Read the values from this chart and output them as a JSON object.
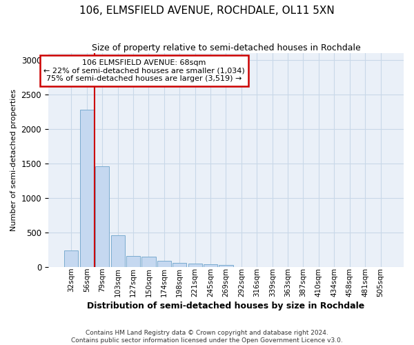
{
  "title": "106, ELMSFIELD AVENUE, ROCHDALE, OL11 5XN",
  "subtitle": "Size of property relative to semi-detached houses in Rochdale",
  "xlabel": "Distribution of semi-detached houses by size in Rochdale",
  "ylabel": "Number of semi-detached properties",
  "footer_line1": "Contains HM Land Registry data © Crown copyright and database right 2024.",
  "footer_line2": "Contains public sector information licensed under the Open Government Licence v3.0.",
  "annotation_title": "106 ELMSFIELD AVENUE: 68sqm",
  "annotation_line1": "← 22% of semi-detached houses are smaller (1,034)",
  "annotation_line2": "75% of semi-detached houses are larger (3,519) →",
  "bar_categories": [
    "32sqm",
    "56sqm",
    "79sqm",
    "103sqm",
    "127sqm",
    "150sqm",
    "174sqm",
    "198sqm",
    "221sqm",
    "245sqm",
    "269sqm",
    "292sqm",
    "316sqm",
    "339sqm",
    "363sqm",
    "387sqm",
    "410sqm",
    "434sqm",
    "458sqm",
    "481sqm",
    "505sqm"
  ],
  "bar_values": [
    240,
    2280,
    1460,
    460,
    160,
    145,
    85,
    55,
    50,
    40,
    30,
    0,
    0,
    0,
    0,
    0,
    0,
    0,
    0,
    0,
    0
  ],
  "bar_color": "#c5d8f0",
  "bar_edge_color": "#7aabcf",
  "red_line_x": 1.5,
  "ylim_max": 3100,
  "yticks": [
    0,
    500,
    1000,
    1500,
    2000,
    2500,
    3000
  ],
  "grid_color": "#c8d8e8",
  "background_color": "#eaf0f8",
  "annotation_box_facecolor": "white",
  "annotation_box_edgecolor": "#cc0000"
}
